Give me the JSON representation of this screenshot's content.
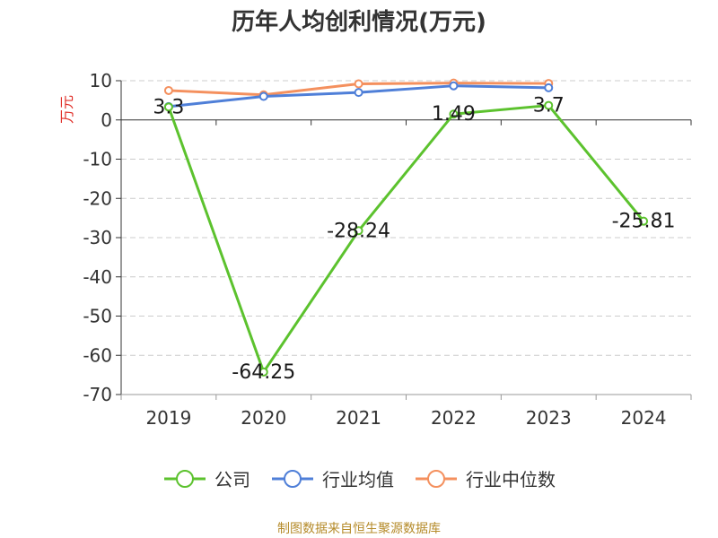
{
  "chart_data": {
    "type": "line",
    "title": "历年人均创利情况(万元)",
    "ylabel": "万元",
    "categories": [
      "2019",
      "2020",
      "2021",
      "2022",
      "2023",
      "2024"
    ],
    "ylim": [
      -70,
      10
    ],
    "yticks": [
      10,
      0,
      -10,
      -20,
      -30,
      -40,
      -50,
      -60,
      -70
    ],
    "grid": true,
    "legend_position": "bottom",
    "series": [
      {
        "name": "公司",
        "color": "#5cc22e",
        "values": [
          3.3,
          -64.25,
          -28.24,
          1.49,
          3.7,
          -25.81
        ],
        "labels": [
          "3.3",
          "-64.25",
          "-28.24",
          "1.49",
          "3.7",
          "-25.81"
        ]
      },
      {
        "name": "行业均值",
        "color": "#4f7fd8",
        "values": [
          3.4,
          6.0,
          7.0,
          8.7,
          8.2,
          null
        ]
      },
      {
        "name": "行业中位数",
        "color": "#f4905e",
        "values": [
          7.5,
          6.4,
          9.2,
          9.4,
          9.3,
          null
        ]
      }
    ]
  },
  "footer": "制图数据来自恒生聚源数据库"
}
